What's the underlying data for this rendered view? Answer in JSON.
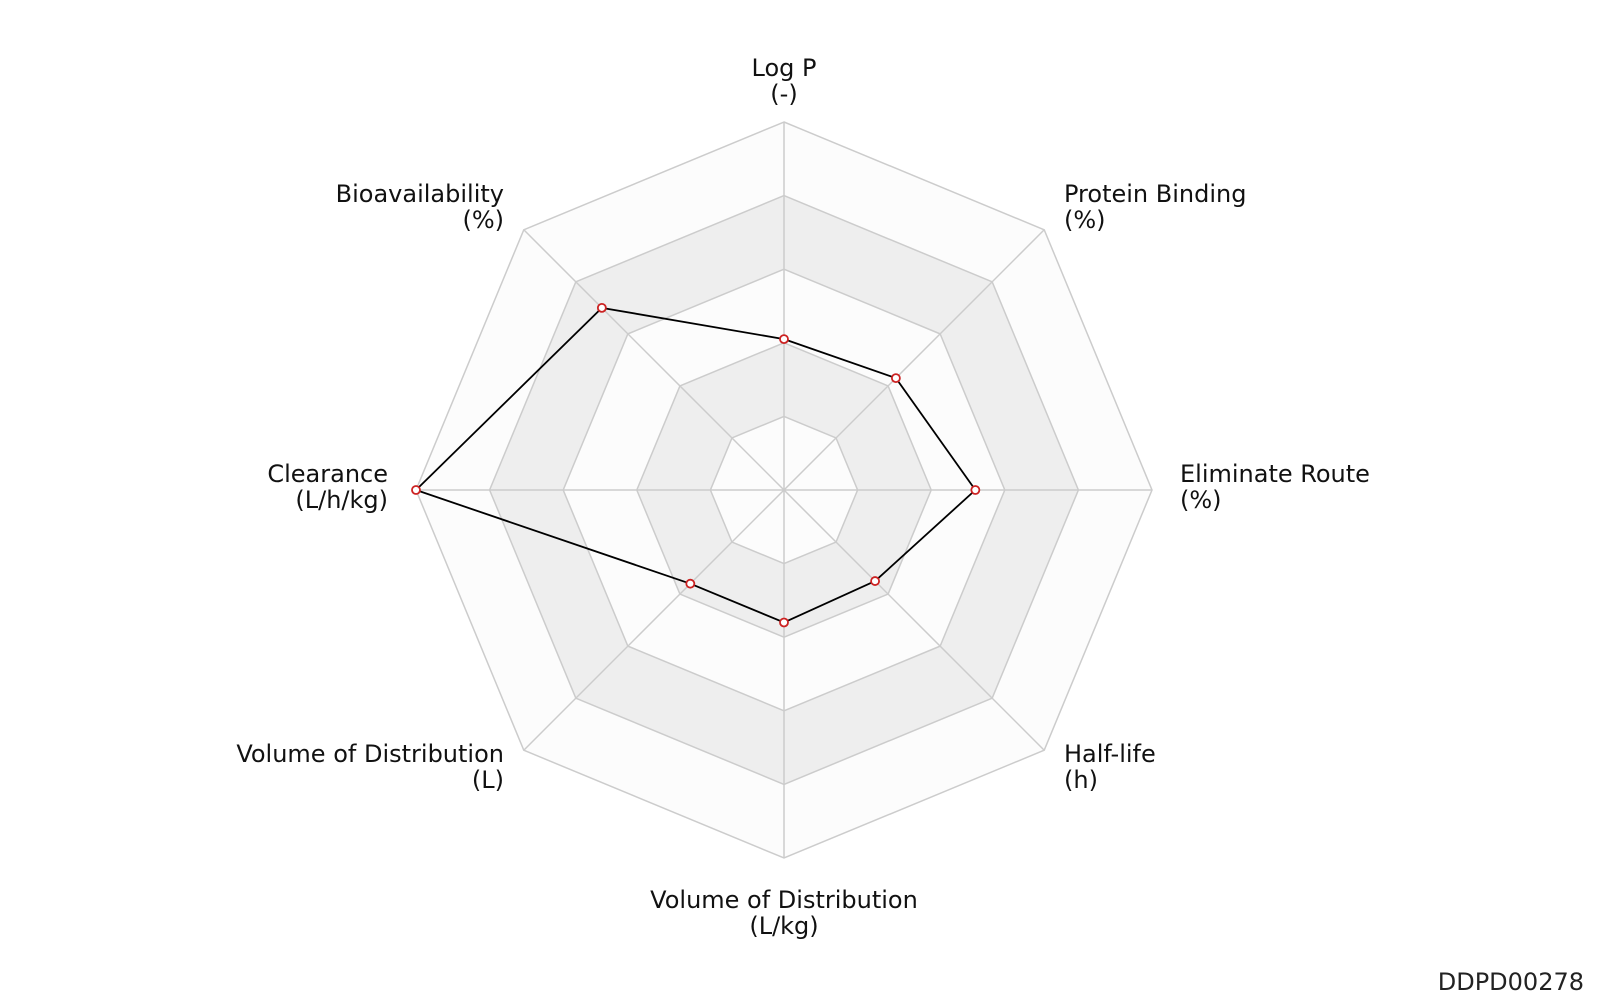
{
  "chart_data": {
    "type": "radar",
    "title": "",
    "axes": [
      {
        "name": "Log P",
        "unit": "(-)"
      },
      {
        "name": "Protein Binding",
        "unit": "(%)"
      },
      {
        "name": "Eliminate Route",
        "unit": "(%)"
      },
      {
        "name": "Half-life",
        "unit": "(h)"
      },
      {
        "name": "Volume of Distribution",
        "unit": "(L/kg)"
      },
      {
        "name": "Volume of Distribution",
        "unit": "(L)"
      },
      {
        "name": "Clearance",
        "unit": "(L/h/kg)"
      },
      {
        "name": "Bioavailability",
        "unit": "(%)"
      }
    ],
    "rings": 5,
    "range": [
      0,
      1
    ],
    "values": [
      0.41,
      0.43,
      0.52,
      0.35,
      0.36,
      0.36,
      1.0,
      0.7
    ],
    "grid": true,
    "colors": {
      "grid": "#cccccc",
      "band_light": "#fcfcfc",
      "band_dark": "#eeeeee",
      "line": "#000000",
      "marker": "#cc2222"
    }
  },
  "watermark": "DDPD00278"
}
